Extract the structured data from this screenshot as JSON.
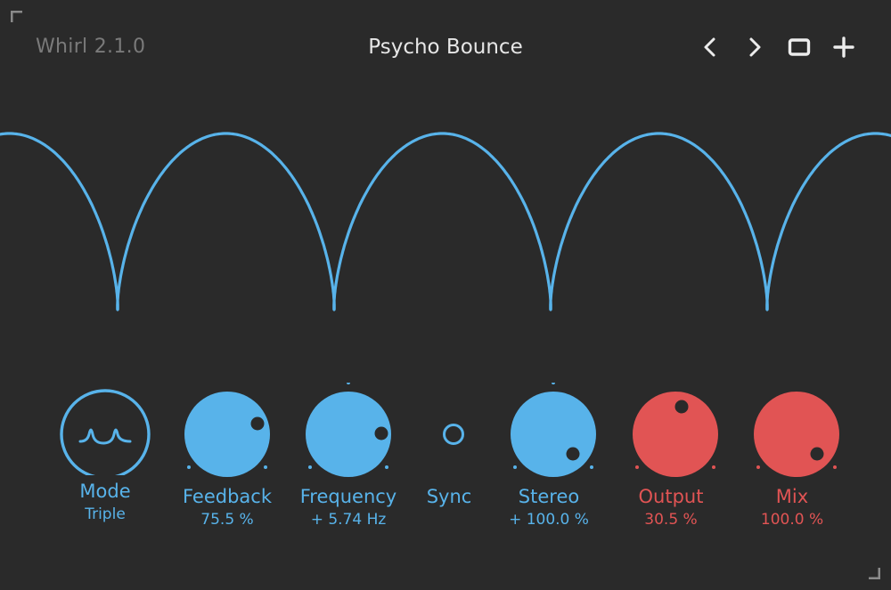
{
  "header": {
    "version": "Whirl 2.1.0",
    "preset_name": "Psycho Bounce",
    "prev_icon": "chevron-left-icon",
    "next_icon": "chevron-right-icon",
    "window_icon": "window-icon",
    "add_icon": "plus-icon"
  },
  "colors": {
    "background": "#2a2a2a",
    "accent_blue": "#58b3ea",
    "accent_red": "#e15454",
    "muted_text": "#7a7a7a",
    "title_text": "#e6e6e6"
  },
  "controls": {
    "mode": {
      "label": "Mode",
      "value": "Triple",
      "icon": "triple-wave-icon"
    },
    "feedback": {
      "label": "Feedback",
      "value": "75.5 %"
    },
    "frequency": {
      "label": "Frequency",
      "value": "+ 5.74 Hz"
    },
    "sync": {
      "label": "Sync"
    },
    "stereo": {
      "label": "Stereo",
      "value": "+ 100.0 %"
    },
    "output": {
      "label": "Output",
      "value": "30.5 %"
    },
    "mix": {
      "label": "Mix",
      "value": "100.0 %"
    }
  }
}
